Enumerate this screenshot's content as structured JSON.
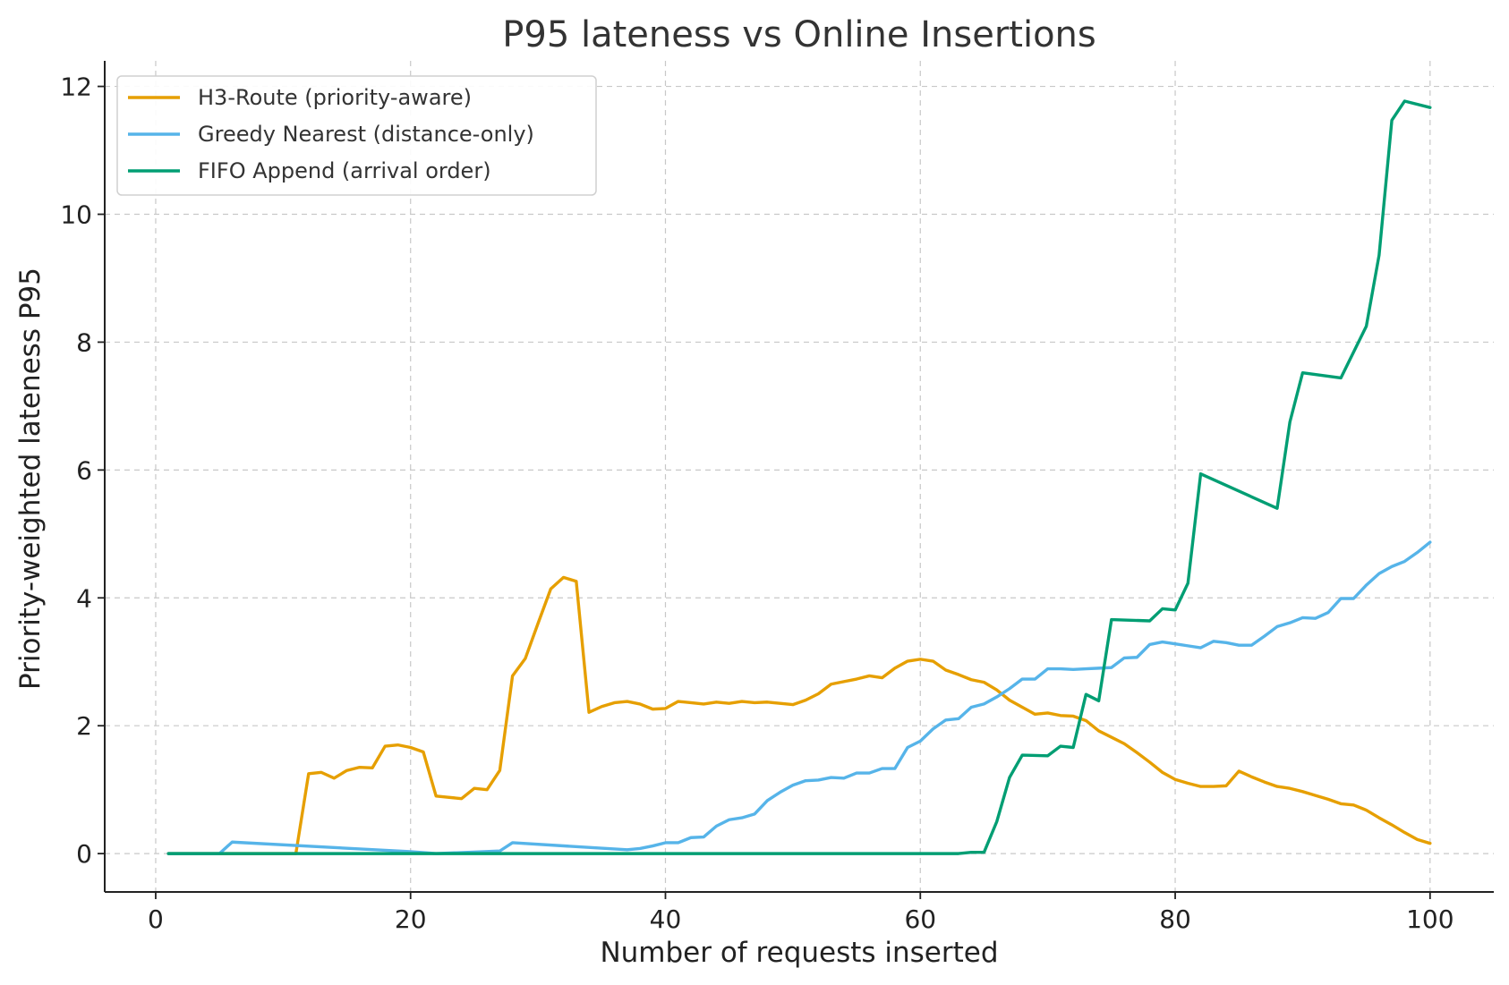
{
  "chart_data": {
    "type": "line",
    "title": "P95 lateness vs Online Insertions",
    "xlabel": "Number of requests inserted",
    "ylabel": "Priority-weighted lateness P95",
    "xlim": [
      -4,
      105
    ],
    "ylim": [
      -0.6,
      12.4
    ],
    "xticks": [
      0,
      20,
      40,
      60,
      80,
      100
    ],
    "yticks": [
      0,
      2,
      4,
      6,
      8,
      10,
      12
    ],
    "grid": true,
    "legend_position": "top-left",
    "series": [
      {
        "name": "H3-Route (priority-aware)",
        "color": "#E69F00",
        "points": [
          [
            1,
            0
          ],
          [
            11,
            0
          ],
          [
            12,
            1.25
          ],
          [
            13,
            1.27
          ],
          [
            14,
            1.18
          ],
          [
            15,
            1.3
          ],
          [
            16,
            1.35
          ],
          [
            17,
            1.34
          ],
          [
            18,
            1.68
          ],
          [
            19,
            1.7
          ],
          [
            20,
            1.66
          ],
          [
            21,
            1.59
          ],
          [
            22,
            0.9
          ],
          [
            24,
            0.86
          ],
          [
            25,
            1.02
          ],
          [
            26,
            1.0
          ],
          [
            27,
            1.3
          ],
          [
            28,
            2.78
          ],
          [
            29,
            3.05
          ],
          [
            30,
            3.6
          ],
          [
            31,
            4.14
          ],
          [
            32,
            4.32
          ],
          [
            33,
            4.26
          ],
          [
            34,
            2.21
          ],
          [
            35,
            2.3
          ],
          [
            36,
            2.36
          ],
          [
            37,
            2.38
          ],
          [
            38,
            2.34
          ],
          [
            39,
            2.26
          ],
          [
            40,
            2.27
          ],
          [
            41,
            2.38
          ],
          [
            42,
            2.36
          ],
          [
            43,
            2.34
          ],
          [
            44,
            2.37
          ],
          [
            45,
            2.35
          ],
          [
            46,
            2.38
          ],
          [
            47,
            2.36
          ],
          [
            48,
            2.37
          ],
          [
            49,
            2.35
          ],
          [
            50,
            2.33
          ],
          [
            51,
            2.4
          ],
          [
            52,
            2.5
          ],
          [
            53,
            2.65
          ],
          [
            54,
            2.69
          ],
          [
            55,
            2.73
          ],
          [
            56,
            2.78
          ],
          [
            57,
            2.75
          ],
          [
            58,
            2.9
          ],
          [
            59,
            3.01
          ],
          [
            60,
            3.04
          ],
          [
            61,
            3.01
          ],
          [
            62,
            2.87
          ],
          [
            63,
            2.8
          ],
          [
            64,
            2.72
          ],
          [
            65,
            2.68
          ],
          [
            66,
            2.56
          ],
          [
            67,
            2.4
          ],
          [
            68,
            2.29
          ],
          [
            69,
            2.18
          ],
          [
            70,
            2.2
          ],
          [
            71,
            2.16
          ],
          [
            72,
            2.15
          ],
          [
            73,
            2.08
          ],
          [
            74,
            1.92
          ],
          [
            75,
            1.82
          ],
          [
            76,
            1.72
          ],
          [
            77,
            1.58
          ],
          [
            78,
            1.43
          ],
          [
            79,
            1.27
          ],
          [
            80,
            1.16
          ],
          [
            81,
            1.1
          ],
          [
            82,
            1.05
          ],
          [
            83,
            1.05
          ],
          [
            84,
            1.06
          ],
          [
            85,
            1.29
          ],
          [
            86,
            1.2
          ],
          [
            87,
            1.12
          ],
          [
            88,
            1.05
          ],
          [
            89,
            1.02
          ],
          [
            90,
            0.97
          ],
          [
            91,
            0.91
          ],
          [
            92,
            0.85
          ],
          [
            93,
            0.78
          ],
          [
            94,
            0.76
          ],
          [
            95,
            0.68
          ],
          [
            96,
            0.56
          ],
          [
            97,
            0.45
          ],
          [
            98,
            0.33
          ],
          [
            99,
            0.22
          ],
          [
            100,
            0.16
          ]
        ]
      },
      {
        "name": "Greedy Nearest (distance-only)",
        "color": "#56B4E9",
        "points": [
          [
            1,
            0
          ],
          [
            5,
            0
          ],
          [
            6,
            0.18
          ],
          [
            20,
            0.03
          ],
          [
            22,
            0
          ],
          [
            27,
            0.04
          ],
          [
            28,
            0.17
          ],
          [
            37,
            0.06
          ],
          [
            38,
            0.08
          ],
          [
            39,
            0.12
          ],
          [
            40,
            0.17
          ],
          [
            41,
            0.17
          ],
          [
            42,
            0.25
          ],
          [
            43,
            0.26
          ],
          [
            44,
            0.43
          ],
          [
            45,
            0.53
          ],
          [
            46,
            0.56
          ],
          [
            47,
            0.62
          ],
          [
            48,
            0.83
          ],
          [
            49,
            0.96
          ],
          [
            50,
            1.07
          ],
          [
            51,
            1.14
          ],
          [
            52,
            1.15
          ],
          [
            53,
            1.19
          ],
          [
            54,
            1.18
          ],
          [
            55,
            1.26
          ],
          [
            56,
            1.26
          ],
          [
            57,
            1.33
          ],
          [
            58,
            1.33
          ],
          [
            59,
            1.66
          ],
          [
            60,
            1.76
          ],
          [
            61,
            1.95
          ],
          [
            62,
            2.09
          ],
          [
            63,
            2.11
          ],
          [
            64,
            2.29
          ],
          [
            65,
            2.34
          ],
          [
            66,
            2.45
          ],
          [
            67,
            2.58
          ],
          [
            68,
            2.73
          ],
          [
            69,
            2.73
          ],
          [
            70,
            2.89
          ],
          [
            71,
            2.89
          ],
          [
            72,
            2.88
          ],
          [
            73,
            2.89
          ],
          [
            74,
            2.9
          ],
          [
            75,
            2.91
          ],
          [
            76,
            3.06
          ],
          [
            77,
            3.07
          ],
          [
            78,
            3.27
          ],
          [
            79,
            3.31
          ],
          [
            80,
            3.28
          ],
          [
            81,
            3.25
          ],
          [
            82,
            3.22
          ],
          [
            83,
            3.32
          ],
          [
            84,
            3.3
          ],
          [
            85,
            3.26
          ],
          [
            86,
            3.26
          ],
          [
            87,
            3.4
          ],
          [
            88,
            3.55
          ],
          [
            89,
            3.61
          ],
          [
            90,
            3.69
          ],
          [
            91,
            3.68
          ],
          [
            92,
            3.77
          ],
          [
            93,
            3.99
          ],
          [
            94,
            3.99
          ],
          [
            95,
            4.2
          ],
          [
            96,
            4.38
          ],
          [
            97,
            4.49
          ],
          [
            98,
            4.57
          ],
          [
            99,
            4.71
          ],
          [
            100,
            4.87
          ]
        ]
      },
      {
        "name": "FIFO Append (arrival order)",
        "color": "#009E73",
        "points": [
          [
            1,
            0
          ],
          [
            62,
            0
          ],
          [
            63,
            0
          ],
          [
            64,
            0.02
          ],
          [
            65,
            0.02
          ],
          [
            66,
            0.5
          ],
          [
            67,
            1.19
          ],
          [
            68,
            1.54
          ],
          [
            70,
            1.53
          ],
          [
            71,
            1.68
          ],
          [
            72,
            1.66
          ],
          [
            73,
            2.49
          ],
          [
            74,
            2.39
          ],
          [
            75,
            3.66
          ],
          [
            78,
            3.64
          ],
          [
            79,
            3.83
          ],
          [
            80,
            3.81
          ],
          [
            81,
            4.23
          ],
          [
            82,
            5.94
          ],
          [
            88,
            5.4
          ],
          [
            89,
            6.75
          ],
          [
            90,
            7.52
          ],
          [
            93,
            7.44
          ],
          [
            95,
            8.25
          ],
          [
            96,
            9.36
          ],
          [
            97,
            11.47
          ],
          [
            98,
            11.77
          ],
          [
            100,
            11.67
          ]
        ]
      }
    ]
  }
}
